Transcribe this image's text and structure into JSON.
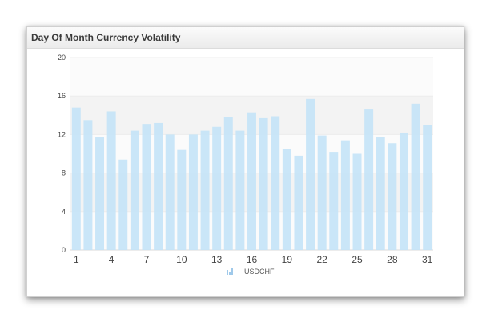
{
  "widget": {
    "title": "Day Of Month Currency Volatility"
  },
  "chart_data": {
    "type": "bar",
    "title": "Day Of Month Currency Volatility",
    "xlabel": "",
    "ylabel": "",
    "categories": [
      1,
      2,
      3,
      4,
      5,
      6,
      7,
      8,
      9,
      10,
      11,
      12,
      13,
      14,
      15,
      16,
      17,
      18,
      19,
      20,
      21,
      22,
      23,
      24,
      25,
      26,
      27,
      28,
      29,
      30,
      31
    ],
    "x_tick_labels": [
      "1",
      "4",
      "7",
      "10",
      "13",
      "16",
      "19",
      "22",
      "25",
      "28",
      "31"
    ],
    "y_tick_labels": [
      "0",
      "4",
      "8",
      "12",
      "16",
      "20"
    ],
    "ylim": [
      0,
      20
    ],
    "grid": true,
    "legend_position": "bottom-center",
    "series": [
      {
        "name": "USDCHF",
        "color": "#c6e4f7",
        "values": [
          14.8,
          13.5,
          11.7,
          14.4,
          9.4,
          12.4,
          13.1,
          13.2,
          12.0,
          10.4,
          12.0,
          12.4,
          12.8,
          13.8,
          12.4,
          14.3,
          13.7,
          13.9,
          10.5,
          9.8,
          15.7,
          11.9,
          10.2,
          11.4,
          10.0,
          14.6,
          11.7,
          11.1,
          12.2,
          15.2,
          13.0
        ]
      }
    ],
    "band_colors": [
      "#fbfbfb",
      "#f3f3f3"
    ]
  }
}
